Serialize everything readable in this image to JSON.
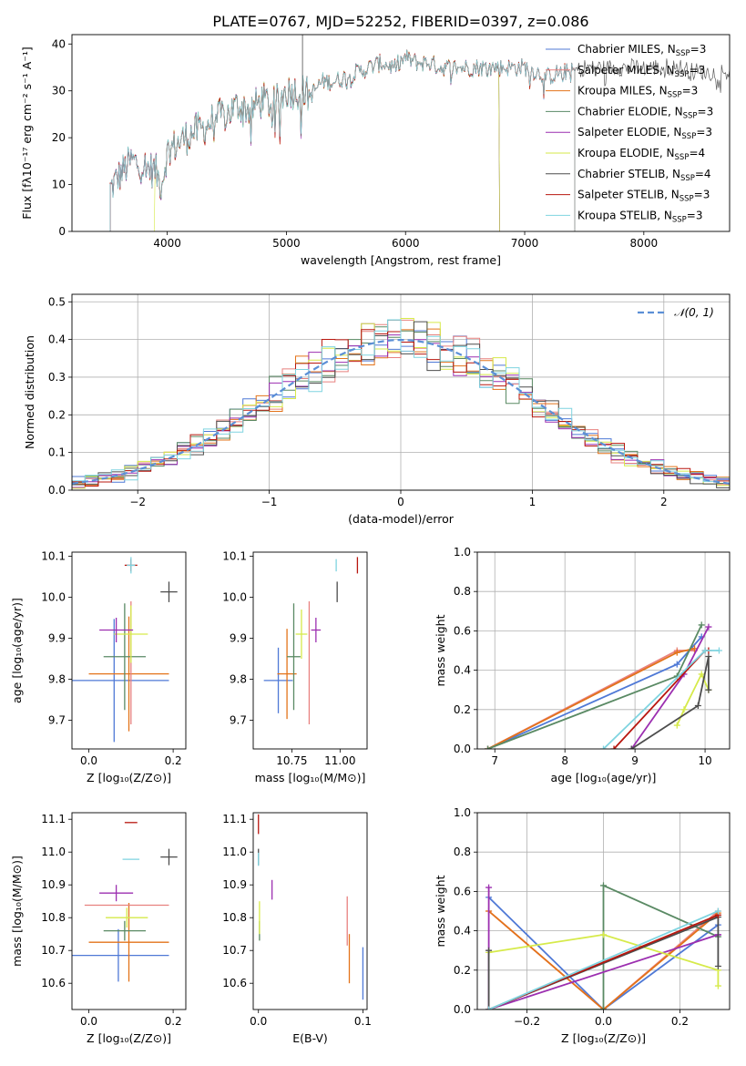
{
  "figure": {
    "title": "PLATE=0767, MJD=52252, FIBERID=0397, z=0.086"
  },
  "colors": {
    "Chabrier MILES": "#4f79d6",
    "Salpeter MILES": "#e8817f",
    "Kroupa MILES": "#e3731a",
    "Chabrier ELODIE": "#5a8a64",
    "Salpeter ELODIE": "#9c2fb0",
    "Kroupa ELODIE": "#d6ea4a",
    "Chabrier STELIB": "#4d4d4d",
    "Salpeter STELIB": "#b8170f",
    "Kroupa STELIB": "#7fd4e0",
    "gaussian": "#5b8fd6",
    "grid": "#b0b0b0"
  },
  "chart_data": [
    {
      "id": "spectrum",
      "type": "line",
      "xlabel": "wavelength [Angstrom, rest frame]",
      "ylabel": "Flux [fλ10⁻¹⁷ erg cm⁻² s⁻¹ A⁻¹]",
      "xlim": [
        3200,
        8720
      ],
      "ylim": [
        0,
        42
      ],
      "xticks": [
        "4000",
        "5000",
        "6000",
        "7000",
        "8000"
      ],
      "yticks": [
        "0",
        "10",
        "20",
        "30",
        "40"
      ],
      "grid": false,
      "legend_position": "top-right",
      "legend": [
        {
          "name": "Chabrier MILES",
          "sub": "SSP",
          "n": "=3"
        },
        {
          "name": "Salpeter MILES",
          "sub": "SSP",
          "n": "=3"
        },
        {
          "name": "Kroupa MILES",
          "sub": "SSP",
          "n": "=3"
        },
        {
          "name": "Chabrier ELODIE",
          "sub": "SSP",
          "n": "=3"
        },
        {
          "name": "Salpeter ELODIE",
          "sub": "SSP",
          "n": "=3"
        },
        {
          "name": "Kroupa ELODIE",
          "sub": "SSP",
          "n": "=4"
        },
        {
          "name": "Chabrier STELIB",
          "sub": "SSP",
          "n": "=4"
        },
        {
          "name": "Salpeter STELIB",
          "sub": "SSP",
          "n": "=3"
        },
        {
          "name": "Kroupa STELIB",
          "sub": "SSP",
          "n": "=3"
        }
      ],
      "envelope": {
        "wavelength": [
          3520,
          3600,
          3700,
          3800,
          3900,
          3950,
          4000,
          4100,
          4200,
          4300,
          4400,
          4500,
          4600,
          4700,
          4800,
          4900,
          5000,
          5100,
          5200,
          5300,
          5400,
          5500,
          5600,
          5700,
          5800,
          5900,
          6000,
          6100,
          6200,
          6300,
          6400,
          6500,
          6600,
          6700,
          6800,
          6900,
          7000,
          7100,
          7200,
          7300,
          7400,
          7500,
          7600,
          7700,
          7800,
          7900,
          8000,
          8100,
          8200,
          8300,
          8400,
          8500,
          8600,
          8700
        ],
        "flux": [
          9,
          12,
          15,
          14,
          13,
          10,
          17,
          19,
          21,
          22,
          24,
          25,
          27,
          26,
          28,
          27,
          30,
          30,
          29,
          32,
          32,
          33,
          34,
          35,
          36,
          35,
          37,
          36,
          36,
          35,
          35,
          35,
          35,
          35,
          35,
          35,
          35,
          34,
          33,
          34,
          34,
          35,
          35,
          35,
          35,
          35,
          35,
          35,
          35,
          35,
          34,
          34,
          34,
          34
        ]
      },
      "fit_ranges": {
        "Chabrier MILES": [
          3520,
          7420
        ],
        "Salpeter MILES": [
          3520,
          7420
        ],
        "Kroupa MILES": [
          3520,
          7420
        ],
        "Chabrier ELODIE": [
          3520,
          6790
        ],
        "Salpeter ELODIE": [
          3520,
          6790
        ],
        "Kroupa ELODIE": [
          3890,
          6790
        ],
        "Chabrier STELIB": [
          3520,
          8720
        ],
        "Salpeter STELIB": [
          3520,
          7420
        ],
        "Kroupa STELIB": [
          3520,
          7420
        ]
      }
    },
    {
      "id": "residuals",
      "type": "histogram",
      "xlabel": "(data-model)/error",
      "ylabel": "Normed distribution",
      "xlim": [
        -2.5,
        2.5
      ],
      "ylim": [
        0,
        0.52
      ],
      "xticks": [
        "−2",
        "−1",
        "0",
        "1",
        "2"
      ],
      "yticks": [
        "0.0",
        "0.1",
        "0.2",
        "0.3",
        "0.4",
        "0.5"
      ],
      "grid": true,
      "legend_position": "top-right",
      "legend": [
        {
          "name": "𝒩(0, 1)"
        }
      ],
      "bin_width": 0.1,
      "gaussian": {
        "mean": 0,
        "sigma": 1
      }
    },
    {
      "id": "z_age",
      "type": "errorbar",
      "xlabel": "Z [log₁₀(Z/Z⊙)]",
      "ylabel": "age  [log₁₀(age/yr)]",
      "xlim": [
        -0.04,
        0.23
      ],
      "ylim": [
        9.63,
        10.11
      ],
      "xticks": [
        "0.0",
        "0.2"
      ],
      "yticks": [
        "9.7",
        "9.8",
        "9.9",
        "10.0",
        "10.1"
      ],
      "grid": false,
      "points": [
        {
          "model": "Chabrier MILES",
          "x": 0.06,
          "xerr": 0.13,
          "y": 9.797,
          "yerr": 0.15
        },
        {
          "model": "Kroupa MILES",
          "x": 0.095,
          "xerr": 0.095,
          "y": 9.813,
          "yerr": 0.14
        },
        {
          "model": "Salpeter MILES",
          "x": 0.1,
          "xerr": 0.0,
          "y": 9.84,
          "yerr": 0.15
        },
        {
          "model": "Chabrier ELODIE",
          "x": 0.085,
          "xerr": 0.05,
          "y": 9.855,
          "yerr": 0.13
        },
        {
          "model": "Kroupa ELODIE",
          "x": 0.1,
          "xerr": 0.04,
          "y": 9.91,
          "yerr": 0.07
        },
        {
          "model": "Salpeter ELODIE",
          "x": 0.065,
          "xerr": 0.04,
          "y": 9.92,
          "yerr": 0.03
        },
        {
          "model": "Chabrier STELIB",
          "x": 0.19,
          "xerr": 0.02,
          "y": 10.013,
          "yerr": 0.025
        },
        {
          "model": "Salpeter STELIB",
          "x": 0.1,
          "xerr": 0.015,
          "y": 10.078,
          "yerr": 0.015
        },
        {
          "model": "Kroupa STELIB",
          "x": 0.1,
          "xerr": 0.01,
          "y": 10.078,
          "yerr": 0.02
        }
      ]
    },
    {
      "id": "mass_age",
      "type": "errorbar",
      "xlabel": "mass [log₁₀(M/M⊙)]",
      "ylabel": "",
      "xlim": [
        10.55,
        11.14
      ],
      "ylim": [
        9.63,
        10.11
      ],
      "xticks": [
        "10.75",
        "11.00"
      ],
      "yticks": [
        "9.7",
        "9.8",
        "9.9",
        "10.0",
        "10.1"
      ],
      "grid": false,
      "points": [
        {
          "model": "Chabrier MILES",
          "x": 10.68,
          "xerr": 0.075,
          "y": 9.797,
          "yerr": 0.08
        },
        {
          "model": "Kroupa MILES",
          "x": 10.725,
          "xerr": 0.05,
          "y": 9.813,
          "yerr": 0.11
        },
        {
          "model": "Salpeter MILES",
          "x": 10.84,
          "xerr": 0.0,
          "y": 9.84,
          "yerr": 0.15
        },
        {
          "model": "Chabrier ELODIE",
          "x": 10.76,
          "xerr": 0.035,
          "y": 9.855,
          "yerr": 0.13
        },
        {
          "model": "Kroupa ELODIE",
          "x": 10.8,
          "xerr": 0.03,
          "y": 9.91,
          "yerr": 0.06
        },
        {
          "model": "Salpeter ELODIE",
          "x": 10.875,
          "xerr": 0.025,
          "y": 9.92,
          "yerr": 0.03
        },
        {
          "model": "Chabrier STELIB",
          "x": 10.985,
          "xerr": 0.0,
          "y": 10.013,
          "yerr": 0.025
        },
        {
          "model": "Salpeter STELIB",
          "x": 11.09,
          "xerr": 0.0,
          "y": 10.078,
          "yerr": 0.02
        },
        {
          "model": "Kroupa STELIB",
          "x": 10.98,
          "xerr": 0.0,
          "y": 10.078,
          "yerr": 0.015
        }
      ]
    },
    {
      "id": "age_weight",
      "type": "line",
      "xlabel": "age  [log₁₀(age/yr)]",
      "ylabel": "mass weight",
      "xlim": [
        6.75,
        10.35
      ],
      "ylim": [
        0,
        1
      ],
      "xticks": [
        "7",
        "8",
        "9",
        "10"
      ],
      "yticks": [
        "0.0",
        "0.2",
        "0.4",
        "0.6",
        "0.8",
        "1.0"
      ],
      "grid": true,
      "series": [
        {
          "model": "Chabrier MILES",
          "x": [
            6.9,
            9.6,
            9.95
          ],
          "y": [
            0.0,
            0.43,
            0.57
          ]
        },
        {
          "model": "Salpeter MILES",
          "x": [
            6.9,
            9.6,
            9.85
          ],
          "y": [
            0.0,
            0.5,
            0.5
          ]
        },
        {
          "model": "Kroupa MILES",
          "x": [
            6.9,
            9.6,
            9.85
          ],
          "y": [
            0.0,
            0.49,
            0.51
          ]
        },
        {
          "model": "Chabrier ELODIE",
          "x": [
            6.9,
            9.6,
            9.95
          ],
          "y": [
            0.0,
            0.37,
            0.63
          ]
        },
        {
          "model": "Salpeter ELODIE",
          "x": [
            8.95,
            9.7,
            10.05
          ],
          "y": [
            0.0,
            0.38,
            0.62
          ]
        },
        {
          "model": "Kroupa ELODIE",
          "x": [
            9.6,
            9.7,
            9.95,
            10.05
          ],
          "y": [
            0.12,
            0.2,
            0.38,
            0.3
          ]
        },
        {
          "model": "Chabrier STELIB",
          "x": [
            8.95,
            9.9,
            10.05,
            10.05
          ],
          "y": [
            0.0,
            0.22,
            0.47,
            0.3
          ]
        },
        {
          "model": "Salpeter STELIB",
          "x": [
            8.7,
            10.0,
            10.05
          ],
          "y": [
            0.0,
            0.5,
            0.5
          ]
        },
        {
          "model": "Kroupa STELIB",
          "x": [
            8.55,
            10.0,
            10.2
          ],
          "y": [
            0.0,
            0.5,
            0.5
          ]
        }
      ]
    },
    {
      "id": "z_mass",
      "type": "errorbar",
      "xlabel": "Z [log₁₀(Z/Z⊙)]",
      "ylabel": "mass [log₁₀(M/M⊙)]",
      "xlim": [
        -0.04,
        0.23
      ],
      "ylim": [
        10.52,
        11.12
      ],
      "xticks": [
        "0.0",
        "0.2"
      ],
      "yticks": [
        "10.6",
        "10.7",
        "10.8",
        "10.9",
        "11.0",
        "11.1"
      ],
      "grid": false,
      "points": [
        {
          "model": "Chabrier MILES",
          "x": 0.07,
          "xerr": 0.12,
          "y": 10.685,
          "yerr": 0.08
        },
        {
          "model": "Kroupa MILES",
          "x": 0.095,
          "xerr": 0.095,
          "y": 10.725,
          "yerr": 0.12
        },
        {
          "model": "Chabrier ELODIE",
          "x": 0.085,
          "xerr": 0.05,
          "y": 10.76,
          "yerr": 0.03
        },
        {
          "model": "Kroupa ELODIE",
          "x": 0.09,
          "xerr": 0.05,
          "y": 10.8,
          "yerr": 0.03
        },
        {
          "model": "Salpeter MILES",
          "x": 0.09,
          "xerr": 0.1,
          "y": 10.838,
          "yerr": 0.0
        },
        {
          "model": "Salpeter ELODIE",
          "x": 0.065,
          "xerr": 0.04,
          "y": 10.875,
          "yerr": 0.025
        },
        {
          "model": "Chabrier STELIB",
          "x": 0.19,
          "xerr": 0.02,
          "y": 10.985,
          "yerr": 0.025
        },
        {
          "model": "Kroupa STELIB",
          "x": 0.1,
          "xerr": 0.02,
          "y": 10.978,
          "yerr": 0.0
        },
        {
          "model": "Salpeter STELIB",
          "x": 0.1,
          "xerr": 0.015,
          "y": 11.09,
          "yerr": 0.0
        }
      ]
    },
    {
      "id": "ebv_mass",
      "type": "errorbar",
      "xlabel": "E(B-V)",
      "ylabel": "",
      "xlim": [
        -0.005,
        0.104
      ],
      "ylim": [
        10.52,
        11.12
      ],
      "xticks": [
        "0.0",
        "0.1"
      ],
      "yticks": [
        "10.6",
        "10.7",
        "10.8",
        "10.9",
        "11.0",
        "11.1"
      ],
      "grid": false,
      "points": [
        {
          "model": "Chabrier MILES",
          "x": 0.1,
          "xerr": 0,
          "y": 10.63,
          "yerr": 0.08
        },
        {
          "model": "Kroupa MILES",
          "x": 0.087,
          "xerr": 0,
          "y": 10.675,
          "yerr": 0.075
        },
        {
          "model": "Salpeter MILES",
          "x": 0.085,
          "xerr": 0,
          "y": 10.79,
          "yerr": 0.075
        },
        {
          "model": "Chabrier ELODIE",
          "x": 0.001,
          "xerr": 0,
          "y": 10.76,
          "yerr": 0.03
        },
        {
          "model": "Kroupa ELODIE",
          "x": 0.001,
          "xerr": 0,
          "y": 10.8,
          "yerr": 0.05
        },
        {
          "model": "Salpeter ELODIE",
          "x": 0.013,
          "xerr": 0,
          "y": 10.885,
          "yerr": 0.03
        },
        {
          "model": "Chabrier STELIB",
          "x": 0.0,
          "xerr": 0,
          "y": 10.985,
          "yerr": 0.025
        },
        {
          "model": "Kroupa STELIB",
          "x": 0.0,
          "xerr": 0,
          "y": 10.978,
          "yerr": 0.02
        },
        {
          "model": "Salpeter STELIB",
          "x": 0.0,
          "xerr": 0,
          "y": 11.085,
          "yerr": 0.03
        }
      ]
    },
    {
      "id": "z_weight",
      "type": "line",
      "xlabel": "Z [log₁₀(Z/Z⊙)]",
      "ylabel": "mass weight",
      "xlim": [
        -0.33,
        0.33
      ],
      "ylim": [
        0,
        1
      ],
      "xticks": [
        "−0.2",
        "0.0",
        "0.2"
      ],
      "yticks": [
        "0.0",
        "0.2",
        "0.4",
        "0.6",
        "0.8",
        "1.0"
      ],
      "grid": true,
      "series": [
        {
          "model": "Chabrier MILES",
          "x": [
            -0.3,
            0.0,
            0.3
          ],
          "y": [
            0.57,
            0.0,
            0.43
          ]
        },
        {
          "model": "Salpeter MILES",
          "x": [
            -0.3,
            0.0,
            0.3
          ],
          "y": [
            0.5,
            0.0,
            0.5
          ]
        },
        {
          "model": "Kroupa MILES",
          "x": [
            -0.3,
            0.0,
            0.3
          ],
          "y": [
            0.5,
            0.0,
            0.49
          ]
        },
        {
          "model": "Chabrier ELODIE",
          "x": [
            -0.3,
            0.0,
            0.0,
            0.3
          ],
          "y": [
            0.0,
            0.0,
            0.63,
            0.37
          ]
        },
        {
          "model": "Salpeter ELODIE",
          "x": [
            -0.3,
            -0.3,
            0.3,
            0.3
          ],
          "y": [
            0.62,
            0.0,
            0.38,
            0.38
          ]
        },
        {
          "model": "Kroupa ELODIE",
          "x": [
            -0.3,
            0.0,
            0.3,
            0.3
          ],
          "y": [
            0.29,
            0.38,
            0.2,
            0.12
          ]
        },
        {
          "model": "Chabrier STELIB",
          "x": [
            -0.3,
            -0.3,
            0.3,
            0.3
          ],
          "y": [
            0.3,
            0.0,
            0.47,
            0.22
          ]
        },
        {
          "model": "Salpeter STELIB",
          "x": [
            -0.3,
            0.3
          ],
          "y": [
            0.0,
            0.48
          ]
        },
        {
          "model": "Kroupa STELIB",
          "x": [
            -0.3,
            0.3
          ],
          "y": [
            0.0,
            0.5
          ]
        }
      ]
    }
  ]
}
